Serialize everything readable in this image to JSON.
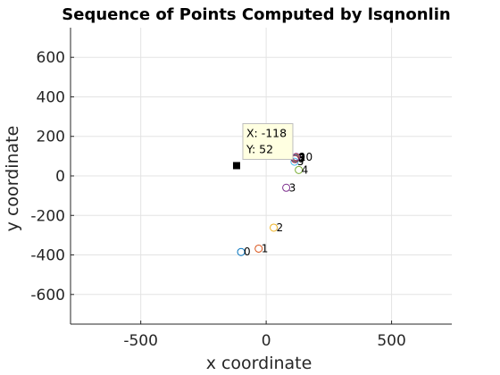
{
  "chart_data": {
    "type": "scatter",
    "title": "Sequence of Points Computed by lsqnonlin",
    "xlabel": "x coordinate",
    "ylabel": "y coordinate",
    "xlim": [
      -780,
      740
    ],
    "ylim": [
      -750,
      750
    ],
    "xticks": [
      -500,
      0,
      500
    ],
    "xtick_labels": [
      "-500",
      "0",
      "500"
    ],
    "yticks": [
      600,
      400,
      200,
      0,
      -200,
      -400,
      -600
    ],
    "ytick_labels": [
      "600",
      "400",
      "200",
      "0",
      "-200",
      "-400",
      "-600"
    ],
    "grid": true,
    "points": [
      {
        "label": "0",
        "x": -100,
        "y": -385,
        "color": "#0072BD"
      },
      {
        "label": "1",
        "x": -30,
        "y": -368,
        "color": "#D95319"
      },
      {
        "label": "2",
        "x": 30,
        "y": -262,
        "color": "#EDB120"
      },
      {
        "label": "3",
        "x": 80,
        "y": -60,
        "color": "#7E2F8E"
      },
      {
        "label": "4",
        "x": 130,
        "y": 30,
        "color": "#77AC30"
      },
      {
        "label": "5",
        "x": 113,
        "y": 72,
        "color": "#4DBEEE"
      },
      {
        "label": "6",
        "x": 115,
        "y": 85,
        "color": "#A2142F"
      },
      {
        "label": "7",
        "x": 117,
        "y": 90,
        "color": "#0072BD"
      },
      {
        "label": "8",
        "x": 118,
        "y": 93,
        "color": "#D95319"
      },
      {
        "label": "9",
        "x": 119,
        "y": 95,
        "color": "#EDB120"
      },
      {
        "label": "10",
        "x": 120,
        "y": 96,
        "color": "#7E2F8E"
      }
    ],
    "highlight": {
      "x": -118,
      "y": 52,
      "marker": "square",
      "color": "#000000"
    },
    "datatip": {
      "x_text": "X: -118",
      "y_text": "Y: 52"
    }
  }
}
